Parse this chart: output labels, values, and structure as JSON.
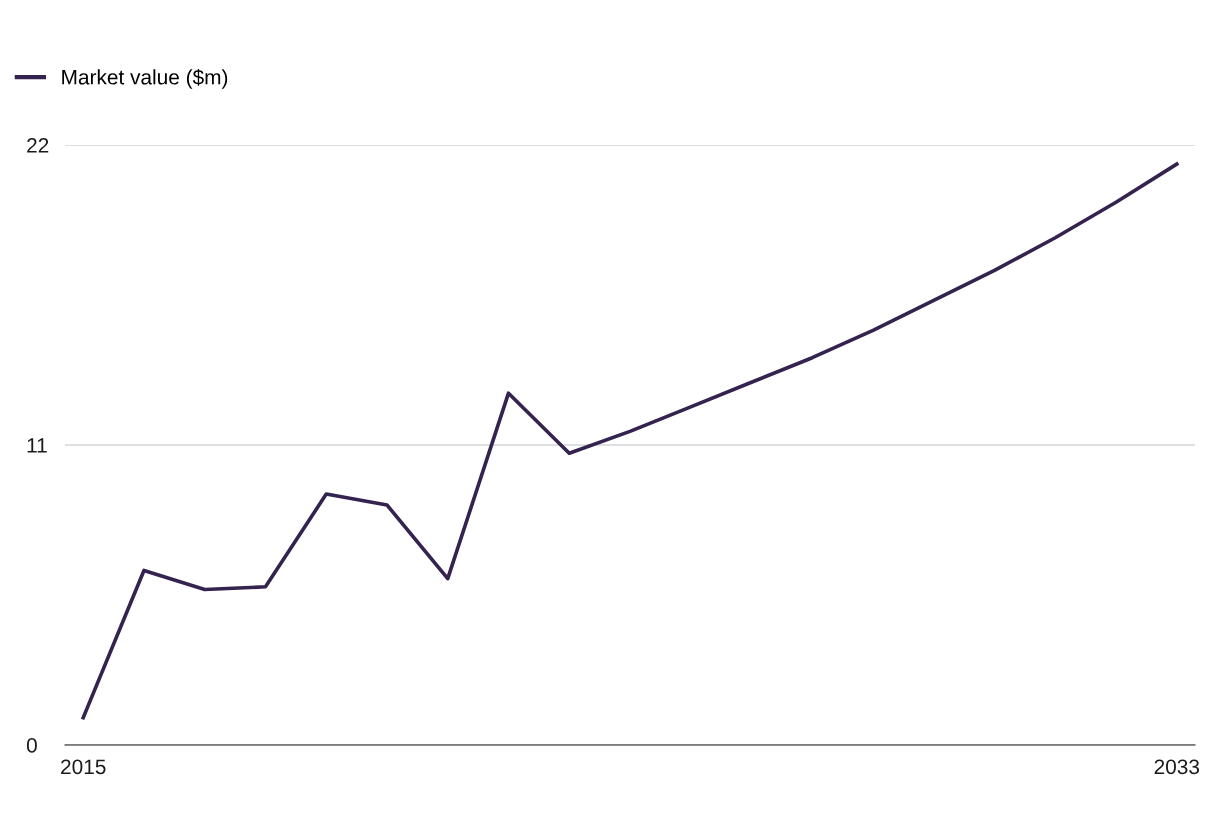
{
  "chart_data": {
    "type": "line",
    "x": [
      2015,
      2016,
      2017,
      2018,
      2019,
      2020,
      2021,
      2022,
      2023,
      2024,
      2025,
      2026,
      2027,
      2028,
      2029,
      2030,
      2031,
      2032,
      2033
    ],
    "series": [
      {
        "name": "Market value ($m)",
        "color": "#35234f",
        "values": [
          1.0,
          6.4,
          5.7,
          5.8,
          9.2,
          8.8,
          6.1,
          12.9,
          10.7,
          11.5,
          12.4,
          13.3,
          14.2,
          15.2,
          16.3,
          17.4,
          18.6,
          19.9,
          21.3
        ]
      }
    ],
    "xlim": [
      2014.7,
      2033.3
    ],
    "xticks": [
      2015,
      2033
    ],
    "ylim": [
      0,
      22
    ],
    "yticks": [
      0,
      11,
      22
    ],
    "grid": "y",
    "legend": "top left",
    "marker": "none",
    "line_style": "solid"
  }
}
